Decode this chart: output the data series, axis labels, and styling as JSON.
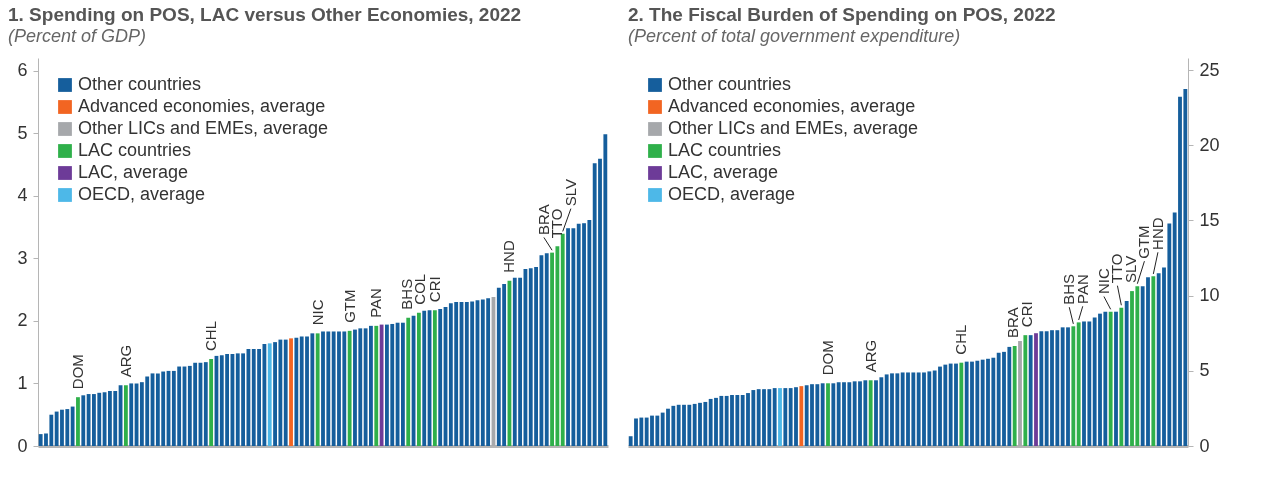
{
  "chart_data": [
    {
      "type": "bar",
      "title": "1. Spending on POS, LAC versus Other Economies, 2022",
      "subtitle": "(Percent of GDP)",
      "categories": [
        null,
        null,
        null,
        null,
        null,
        null,
        null,
        null,
        null,
        null,
        null,
        null,
        null,
        null,
        null,
        null,
        null,
        null,
        null,
        null,
        null,
        null,
        null,
        null,
        null,
        null,
        null,
        null,
        null,
        null,
        null,
        null,
        null,
        null,
        null,
        null,
        null,
        null,
        null,
        null,
        null,
        null,
        null,
        null,
        null,
        null,
        null,
        null,
        null,
        null,
        null,
        null,
        null,
        null,
        null,
        null,
        null,
        null,
        null,
        null,
        null,
        null,
        null,
        null,
        null,
        null,
        null,
        null,
        null,
        null,
        null,
        null,
        null,
        null,
        null,
        null,
        null,
        null,
        null,
        null,
        null,
        null,
        null,
        null,
        null,
        null,
        null,
        null,
        null,
        null,
        null,
        null,
        null,
        null,
        null,
        null,
        null,
        null,
        null,
        null,
        null,
        null,
        null,
        null,
        null,
        null,
        null
      ],
      "annotations": [
        {
          "text": "DOM",
          "y": 0.78
        },
        {
          "text": "ARG",
          "y": 0.97
        },
        {
          "text": "CHL",
          "y": 1.39
        },
        {
          "text": "NIC",
          "y": 1.8
        },
        {
          "text": "GTM",
          "y": 1.84
        },
        {
          "text": "PAN",
          "y": 1.92
        },
        {
          "text": "BHS",
          "y": 2.05
        },
        {
          "text": "COL",
          "y": 2.13
        },
        {
          "text": "CRI",
          "y": 2.17
        },
        {
          "text": "HND",
          "y": 2.64
        },
        {
          "text": "BRA",
          "y": 3.09
        },
        {
          "text": "TTO",
          "y": 3.19
        },
        {
          "text": "SLV",
          "y": 3.39
        }
      ],
      "ylim": [
        0,
        6.2
      ],
      "yticks": [
        0,
        1,
        2,
        3,
        4,
        5,
        6
      ],
      "legend": "top left",
      "series": [
        {
          "name": "Other countries",
          "color": "#155e9c",
          "values": [
            0.19,
            0.2,
            0.5,
            0.55,
            0.58,
            0.59,
            0.63,
            null,
            0.81,
            0.83,
            0.83,
            0.85,
            0.86,
            0.88,
            0.88,
            0.97,
            null,
            1.0,
            1.0,
            1.02,
            1.11,
            1.16,
            1.16,
            1.19,
            1.2,
            1.2,
            1.27,
            1.27,
            1.28,
            1.33,
            1.33,
            1.34,
            null,
            1.44,
            1.45,
            1.47,
            1.47,
            1.48,
            1.48,
            1.55,
            1.55,
            1.55,
            1.63,
            null,
            1.66,
            1.7,
            1.7,
            null,
            1.73,
            1.75,
            1.75,
            1.8,
            null,
            1.83,
            1.83,
            1.83,
            1.83,
            1.83,
            null,
            1.86,
            1.88,
            1.88,
            1.92,
            null,
            null,
            1.94,
            1.95,
            1.97,
            1.97,
            null,
            2.08,
            null,
            2.16,
            2.17,
            null,
            2.19,
            2.22,
            2.28,
            2.3,
            2.3,
            2.3,
            2.31,
            2.33,
            2.34,
            2.36,
            null,
            2.53,
            2.59,
            null,
            2.69,
            2.69,
            2.83,
            2.84,
            2.86,
            3.05,
            3.08,
            null,
            null,
            null,
            3.48,
            3.48,
            3.55,
            3.56,
            3.61,
            4.52,
            4.59,
            4.98
          ]
        },
        {
          "name": "Advanced economies, average",
          "color": "#f26522",
          "values": [
            null,
            null,
            null,
            null,
            null,
            null,
            null,
            null,
            null,
            null,
            null,
            null,
            null,
            null,
            null,
            null,
            null,
            null,
            null,
            null,
            null,
            null,
            null,
            null,
            null,
            null,
            null,
            null,
            null,
            null,
            null,
            null,
            null,
            null,
            null,
            null,
            null,
            null,
            null,
            null,
            null,
            null,
            null,
            null,
            null,
            null,
            null,
            1.72,
            null,
            null,
            null,
            null,
            null,
            null,
            null,
            null,
            null,
            null,
            null,
            null,
            null,
            null,
            null,
            null,
            null,
            null,
            null,
            null,
            null,
            null,
            null,
            null,
            null,
            null,
            null,
            null,
            null,
            null,
            null,
            null,
            null,
            null,
            null,
            null,
            null,
            null,
            null,
            null,
            null,
            null,
            null,
            null,
            null,
            null,
            null,
            null,
            null,
            null,
            null,
            null,
            null,
            null,
            null,
            null,
            null,
            null,
            null
          ]
        },
        {
          "name": "Other LICs and EMEs, average",
          "color": "#a6a8ab",
          "values": [
            null,
            null,
            null,
            null,
            null,
            null,
            null,
            null,
            null,
            null,
            null,
            null,
            null,
            null,
            null,
            null,
            null,
            null,
            null,
            null,
            null,
            null,
            null,
            null,
            null,
            null,
            null,
            null,
            null,
            null,
            null,
            null,
            null,
            null,
            null,
            null,
            null,
            null,
            null,
            null,
            null,
            null,
            null,
            null,
            null,
            null,
            null,
            null,
            null,
            null,
            null,
            null,
            null,
            null,
            null,
            null,
            null,
            null,
            null,
            null,
            null,
            null,
            null,
            null,
            null,
            null,
            null,
            null,
            null,
            null,
            null,
            null,
            null,
            null,
            null,
            null,
            null,
            null,
            null,
            null,
            null,
            null,
            null,
            null,
            null,
            2.38,
            null,
            null,
            null,
            null,
            null,
            null,
            null,
            null,
            null,
            null,
            null,
            null,
            null,
            null,
            null,
            null,
            null,
            null,
            null,
            null,
            null
          ]
        },
        {
          "name": "LAC countries",
          "color": "#2fb04a",
          "values": [
            null,
            null,
            null,
            null,
            null,
            null,
            null,
            0.78,
            null,
            null,
            null,
            null,
            null,
            null,
            null,
            null,
            0.97,
            null,
            null,
            null,
            null,
            null,
            null,
            null,
            null,
            null,
            null,
            null,
            null,
            null,
            null,
            null,
            1.39,
            null,
            null,
            null,
            null,
            null,
            null,
            null,
            null,
            null,
            null,
            null,
            null,
            null,
            null,
            null,
            null,
            null,
            null,
            null,
            1.8,
            null,
            null,
            null,
            null,
            null,
            1.84,
            null,
            null,
            null,
            null,
            1.92,
            null,
            null,
            null,
            null,
            null,
            2.05,
            null,
            2.13,
            null,
            null,
            2.17,
            null,
            null,
            null,
            null,
            null,
            null,
            null,
            null,
            null,
            null,
            null,
            null,
            null,
            2.64,
            null,
            null,
            null,
            null,
            null,
            null,
            null,
            3.09,
            3.19,
            3.39,
            null,
            null,
            null,
            null,
            null,
            null,
            null,
            null
          ]
        },
        {
          "name": "LAC, average",
          "color": "#6d3b98",
          "values": [
            null,
            null,
            null,
            null,
            null,
            null,
            null,
            null,
            null,
            null,
            null,
            null,
            null,
            null,
            null,
            null,
            null,
            null,
            null,
            null,
            null,
            null,
            null,
            null,
            null,
            null,
            null,
            null,
            null,
            null,
            null,
            null,
            null,
            null,
            null,
            null,
            null,
            null,
            null,
            null,
            null,
            null,
            null,
            null,
            null,
            null,
            null,
            null,
            null,
            null,
            null,
            null,
            null,
            null,
            null,
            null,
            null,
            null,
            null,
            null,
            null,
            null,
            null,
            null,
            1.94,
            null,
            null,
            null,
            null,
            null,
            null,
            null,
            null,
            null,
            null,
            null,
            null,
            null,
            null,
            null,
            null,
            null,
            null,
            null,
            null,
            null,
            null,
            null,
            null,
            null,
            null,
            null,
            null,
            null,
            null,
            null,
            null,
            null,
            null,
            null,
            null,
            null,
            null,
            null,
            null,
            null,
            null
          ]
        },
        {
          "name": "OECD, average",
          "color": "#4db8e8",
          "values": [
            null,
            null,
            null,
            null,
            null,
            null,
            null,
            null,
            null,
            null,
            null,
            null,
            null,
            null,
            null,
            null,
            null,
            null,
            null,
            null,
            null,
            null,
            null,
            null,
            null,
            null,
            null,
            null,
            null,
            null,
            null,
            null,
            null,
            null,
            null,
            null,
            null,
            null,
            null,
            null,
            null,
            null,
            null,
            1.64,
            null,
            null,
            null,
            null,
            null,
            null,
            null,
            null,
            null,
            null,
            null,
            null,
            null,
            null,
            null,
            null,
            null,
            null,
            null,
            null,
            null,
            null,
            null,
            null,
            null,
            null,
            null,
            null,
            null,
            null,
            null,
            null,
            null,
            null,
            null,
            null,
            null,
            null,
            null,
            null,
            null,
            null,
            null,
            null,
            null,
            null,
            null,
            null,
            null,
            null,
            null,
            null,
            null,
            null,
            null,
            null,
            null,
            null,
            null,
            null,
            null,
            null,
            null
          ]
        }
      ]
    },
    {
      "type": "bar",
      "title": "2. The Fiscal Burden of Spending on POS, 2022",
      "subtitle": "(Percent of total government expenditure)",
      "categories": [
        null,
        null,
        null,
        null,
        null,
        null,
        null,
        null,
        null,
        null,
        null,
        null,
        null,
        null,
        null,
        null,
        null,
        null,
        null,
        null,
        null,
        null,
        null,
        null,
        null,
        null,
        null,
        null,
        null,
        null,
        null,
        null,
        null,
        null,
        null,
        null,
        null,
        null,
        null,
        null,
        null,
        null,
        null,
        null,
        null,
        null,
        null,
        null,
        null,
        null,
        null,
        null,
        null,
        null,
        null,
        null,
        null,
        null,
        null,
        null,
        null,
        null,
        null,
        null,
        null,
        null,
        null,
        null,
        null,
        null,
        null,
        null,
        null,
        null,
        null,
        null,
        null,
        null,
        null,
        null,
        null,
        null,
        null,
        null,
        null,
        null,
        null,
        null,
        null,
        null,
        null,
        null,
        null,
        null,
        null,
        null,
        null,
        null,
        null,
        null,
        null,
        null,
        null,
        null,
        null
      ],
      "annotations": [
        {
          "text": "DOM",
          "y": 4.17
        },
        {
          "text": "ARG",
          "y": 4.37
        },
        {
          "text": "CHL",
          "y": 5.54
        },
        {
          "text": "BRA",
          "y": 6.65
        },
        {
          "text": "CRI",
          "y": 7.37
        },
        {
          "text": "BHS",
          "y": 7.96
        },
        {
          "text": "PAN",
          "y": 8.22
        },
        {
          "text": "NIC",
          "y": 8.93
        },
        {
          "text": "TTO",
          "y": 9.2
        },
        {
          "text": "SLV",
          "y": 10.3
        },
        {
          "text": "GTM",
          "y": 10.63
        },
        {
          "text": "HND",
          "y": 11.28
        }
      ],
      "ylim": [
        0,
        25.8
      ],
      "yticks": [
        0,
        5,
        10,
        15,
        20,
        25
      ],
      "legend": "top left",
      "series": [
        {
          "name": "Other countries",
          "color": "#155e9c",
          "values": [
            0.65,
            1.83,
            1.89,
            1.89,
            2.02,
            2.02,
            2.22,
            2.48,
            2.67,
            2.74,
            2.74,
            2.74,
            2.8,
            2.87,
            2.93,
            3.13,
            3.2,
            3.33,
            3.33,
            3.39,
            3.39,
            3.39,
            3.52,
            3.72,
            3.78,
            3.78,
            3.78,
            3.85,
            null,
            3.85,
            3.85,
            3.91,
            null,
            4.04,
            4.11,
            4.11,
            4.17,
            null,
            4.17,
            4.24,
            4.24,
            4.24,
            4.3,
            4.3,
            4.37,
            null,
            4.37,
            4.57,
            4.76,
            4.83,
            4.83,
            4.89,
            4.89,
            4.89,
            4.89,
            4.89,
            4.96,
            5.02,
            5.28,
            5.41,
            5.48,
            5.48,
            null,
            5.61,
            5.61,
            5.67,
            5.74,
            5.8,
            5.87,
            6.2,
            6.26,
            6.59,
            null,
            null,
            null,
            7.37,
            null,
            7.63,
            7.63,
            7.7,
            7.7,
            7.89,
            7.89,
            null,
            null,
            8.28,
            8.28,
            8.54,
            8.8,
            8.93,
            null,
            8.93,
            null,
            9.65,
            null,
            null,
            10.63,
            11.22,
            null,
            11.48,
            11.87,
            14.8,
            15.52,
            23.22,
            23.74
          ]
        },
        {
          "name": "Advanced economies, average",
          "color": "#f26522",
          "values": [
            null,
            null,
            null,
            null,
            null,
            null,
            null,
            null,
            null,
            null,
            null,
            null,
            null,
            null,
            null,
            null,
            null,
            null,
            null,
            null,
            null,
            null,
            null,
            null,
            null,
            null,
            null,
            null,
            null,
            null,
            null,
            null,
            3.98,
            null,
            null,
            null,
            null,
            null,
            null,
            null,
            null,
            null,
            null,
            null,
            null,
            null,
            null,
            null,
            null,
            null,
            null,
            null,
            null,
            null,
            null,
            null,
            null,
            null,
            null,
            null,
            null,
            null,
            null,
            null,
            null,
            null,
            null,
            null,
            null,
            null,
            null,
            null,
            null,
            null,
            null,
            null,
            null,
            null,
            null,
            null,
            null,
            null,
            null,
            null,
            null,
            null,
            null,
            null,
            null,
            null,
            null,
            null,
            null,
            null,
            null,
            null,
            null,
            null,
            null,
            null,
            null,
            null,
            null,
            null,
            null
          ]
        },
        {
          "name": "Other LICs and EMEs, average",
          "color": "#a6a8ab",
          "values": [
            null,
            null,
            null,
            null,
            null,
            null,
            null,
            null,
            null,
            null,
            null,
            null,
            null,
            null,
            null,
            null,
            null,
            null,
            null,
            null,
            null,
            null,
            null,
            null,
            null,
            null,
            null,
            null,
            null,
            null,
            null,
            null,
            null,
            null,
            null,
            null,
            null,
            null,
            null,
            null,
            null,
            null,
            null,
            null,
            null,
            null,
            null,
            null,
            null,
            null,
            null,
            null,
            null,
            null,
            null,
            null,
            null,
            null,
            null,
            null,
            null,
            null,
            null,
            null,
            null,
            null,
            null,
            null,
            null,
            null,
            null,
            null,
            null,
            6.98,
            null,
            null,
            null,
            null,
            null,
            null,
            null,
            null,
            null,
            null,
            null,
            null,
            null,
            null,
            null,
            null,
            null,
            null,
            null,
            null,
            null,
            null,
            null,
            null,
            null,
            null,
            null,
            null,
            null,
            null,
            null
          ]
        },
        {
          "name": "LAC countries",
          "color": "#2fb04a",
          "values": [
            null,
            null,
            null,
            null,
            null,
            null,
            null,
            null,
            null,
            null,
            null,
            null,
            null,
            null,
            null,
            null,
            null,
            null,
            null,
            null,
            null,
            null,
            null,
            null,
            null,
            null,
            null,
            null,
            null,
            null,
            null,
            null,
            null,
            null,
            null,
            null,
            null,
            4.17,
            null,
            null,
            null,
            null,
            null,
            null,
            null,
            4.37,
            null,
            null,
            null,
            null,
            null,
            null,
            null,
            null,
            null,
            null,
            null,
            null,
            null,
            null,
            null,
            null,
            5.54,
            null,
            null,
            null,
            null,
            null,
            null,
            null,
            null,
            null,
            6.65,
            null,
            7.37,
            null,
            null,
            null,
            null,
            null,
            null,
            null,
            null,
            7.96,
            8.22,
            null,
            null,
            null,
            null,
            null,
            8.93,
            null,
            9.2,
            null,
            10.3,
            10.63,
            null,
            null,
            11.28,
            null,
            null,
            null,
            null,
            null,
            null
          ]
        },
        {
          "name": "LAC, average",
          "color": "#6d3b98",
          "values": [
            null,
            null,
            null,
            null,
            null,
            null,
            null,
            null,
            null,
            null,
            null,
            null,
            null,
            null,
            null,
            null,
            null,
            null,
            null,
            null,
            null,
            null,
            null,
            null,
            null,
            null,
            null,
            null,
            null,
            null,
            null,
            null,
            null,
            null,
            null,
            null,
            null,
            null,
            null,
            null,
            null,
            null,
            null,
            null,
            null,
            null,
            null,
            null,
            null,
            null,
            null,
            null,
            null,
            null,
            null,
            null,
            null,
            null,
            null,
            null,
            null,
            null,
            null,
            null,
            null,
            null,
            null,
            null,
            null,
            null,
            null,
            null,
            null,
            null,
            null,
            null,
            7.5,
            null,
            null,
            null,
            null,
            null,
            null,
            null,
            null,
            null,
            null,
            null,
            null,
            null,
            null,
            null,
            null,
            null,
            null,
            null,
            null,
            null,
            null,
            null,
            null,
            null,
            null,
            null,
            null
          ]
        },
        {
          "name": "OECD, average",
          "color": "#4db8e8",
          "values": [
            null,
            null,
            null,
            null,
            null,
            null,
            null,
            null,
            null,
            null,
            null,
            null,
            null,
            null,
            null,
            null,
            null,
            null,
            null,
            null,
            null,
            null,
            null,
            null,
            null,
            null,
            null,
            null,
            3.85,
            null,
            null,
            null,
            null,
            null,
            null,
            null,
            null,
            null,
            null,
            null,
            null,
            null,
            null,
            null,
            null,
            null,
            null,
            null,
            null,
            null,
            null,
            null,
            null,
            null,
            null,
            null,
            null,
            null,
            null,
            null,
            null,
            null,
            null,
            null,
            null,
            null,
            null,
            null,
            null,
            null,
            null,
            null,
            null,
            null,
            null,
            null,
            null,
            null,
            null,
            null,
            null,
            null,
            null,
            null,
            null,
            null,
            null,
            null,
            null,
            null,
            null,
            null,
            null,
            null,
            null,
            null,
            null,
            null,
            null,
            null,
            null,
            null,
            null,
            null,
            null
          ]
        }
      ]
    }
  ]
}
